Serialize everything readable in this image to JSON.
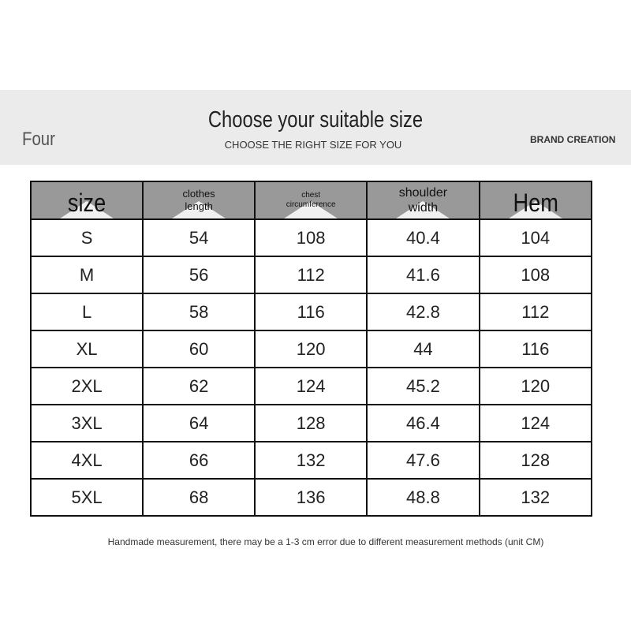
{
  "header": {
    "left_label": "Four",
    "title": "Choose your suitable size",
    "subtitle": "CHOOSE THE RIGHT SIZE FOR YOU",
    "brand": "BRAND CREATION"
  },
  "table": {
    "columns": [
      {
        "line1": "size",
        "line2": ""
      },
      {
        "line1": "clothes",
        "line2": "length"
      },
      {
        "line1": "chest",
        "line2": "circumference"
      },
      {
        "line1": "shoulder",
        "line2": "width"
      },
      {
        "line1": "Hem",
        "line2": ""
      }
    ],
    "rows": [
      [
        "S",
        "54",
        "108",
        "40.4",
        "104"
      ],
      [
        "M",
        "56",
        "112",
        "41.6",
        "108"
      ],
      [
        "L",
        "58",
        "116",
        "42.8",
        "112"
      ],
      [
        "XL",
        "60",
        "120",
        "44",
        "116"
      ],
      [
        "2XL",
        "62",
        "124",
        "45.2",
        "120"
      ],
      [
        "3XL",
        "64",
        "128",
        "46.4",
        "124"
      ],
      [
        "4XL",
        "66",
        "132",
        "47.6",
        "128"
      ],
      [
        "5XL",
        "68",
        "136",
        "48.8",
        "132"
      ]
    ],
    "header_bg": "#999999"
  },
  "note": "Handmade measurement, there may be a 1-3 cm error due to different measurement methods (unit CM)"
}
